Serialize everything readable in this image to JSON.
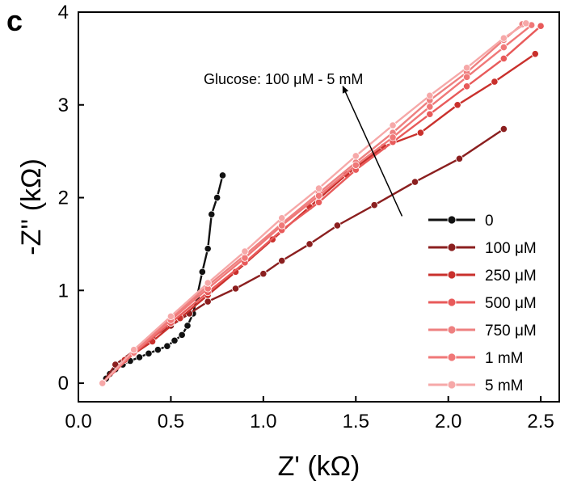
{
  "panel_label": "c",
  "chart_data": {
    "type": "line",
    "title": "",
    "xlabel": "Z' (kΩ)",
    "ylabel": "-Z'' (kΩ)",
    "xlim": [
      0.0,
      2.6
    ],
    "ylim": [
      -0.2,
      4.0
    ],
    "x_ticks": [
      0.0,
      0.5,
      1.0,
      1.5,
      2.0,
      2.5
    ],
    "x_tick_labels": [
      "0.0",
      "0.5",
      "1.0",
      "1.5",
      "2.0",
      "2.5"
    ],
    "y_ticks": [
      0,
      1,
      2,
      3,
      4
    ],
    "y_tick_labels": [
      "0",
      "1",
      "2",
      "3",
      "4"
    ],
    "grid": false,
    "legend_position": "bottom-right",
    "annotation": {
      "text": "Glucose: 100 μM - 5 mM",
      "arrow_from": [
        1.75,
        1.8
      ],
      "arrow_to": [
        1.43,
        3.2
      ]
    },
    "series": [
      {
        "name": "0",
        "color": "#111111",
        "x": [
          0.13,
          0.15,
          0.17,
          0.2,
          0.24,
          0.28,
          0.33,
          0.38,
          0.43,
          0.48,
          0.52,
          0.56,
          0.59,
          0.62,
          0.64,
          0.67,
          0.7,
          0.72,
          0.75,
          0.78
        ],
        "y": [
          0.0,
          0.05,
          0.1,
          0.15,
          0.2,
          0.24,
          0.28,
          0.32,
          0.36,
          0.4,
          0.46,
          0.52,
          0.62,
          0.75,
          0.92,
          1.2,
          1.45,
          1.82,
          2.0,
          2.24
        ]
      },
      {
        "name": "100 μM",
        "color": "#8b1f1f",
        "x": [
          0.13,
          0.2,
          0.3,
          0.4,
          0.5,
          0.6,
          0.7,
          0.85,
          1.0,
          1.1,
          1.25,
          1.4,
          1.6,
          1.82,
          2.06,
          2.3
        ],
        "y": [
          0.0,
          0.2,
          0.35,
          0.5,
          0.62,
          0.75,
          0.88,
          1.02,
          1.18,
          1.32,
          1.5,
          1.7,
          1.92,
          2.17,
          2.42,
          2.74
        ]
      },
      {
        "name": "250 μM",
        "color": "#c9302c",
        "x": [
          0.13,
          0.25,
          0.4,
          0.55,
          0.7,
          0.85,
          1.05,
          1.25,
          1.45,
          1.65,
          1.85,
          2.05,
          2.25,
          2.47
        ],
        "y": [
          0.0,
          0.25,
          0.45,
          0.7,
          0.95,
          1.2,
          1.55,
          1.9,
          2.25,
          2.55,
          2.7,
          3.0,
          3.25,
          3.55
        ]
      },
      {
        "name": "500 μM",
        "color": "#e85a5a",
        "x": [
          0.13,
          0.3,
          0.5,
          0.7,
          0.9,
          1.1,
          1.3,
          1.5,
          1.7,
          1.9,
          2.1,
          2.3,
          2.5
        ],
        "y": [
          0.0,
          0.32,
          0.65,
          0.98,
          1.3,
          1.65,
          1.95,
          2.3,
          2.6,
          2.9,
          3.2,
          3.5,
          3.85
        ]
      },
      {
        "name": "750 μM",
        "color": "#ee8080",
        "x": [
          0.13,
          0.3,
          0.5,
          0.7,
          0.9,
          1.1,
          1.3,
          1.5,
          1.7,
          1.9,
          2.1,
          2.3,
          2.4
        ],
        "y": [
          0.0,
          0.35,
          0.7,
          1.05,
          1.38,
          1.72,
          2.05,
          2.38,
          2.7,
          3.05,
          3.35,
          3.7,
          3.87
        ]
      },
      {
        "name": "1 mM",
        "color": "#f07878",
        "x": [
          0.13,
          0.3,
          0.5,
          0.7,
          0.9,
          1.1,
          1.3,
          1.5,
          1.7,
          1.9,
          2.1,
          2.3,
          2.45
        ],
        "y": [
          0.0,
          0.33,
          0.68,
          1.02,
          1.35,
          1.7,
          2.02,
          2.35,
          2.65,
          2.98,
          3.3,
          3.62,
          3.86
        ]
      },
      {
        "name": "5 mM",
        "color": "#f6a8a8",
        "x": [
          0.13,
          0.3,
          0.5,
          0.7,
          0.9,
          1.1,
          1.3,
          1.5,
          1.7,
          1.9,
          2.1,
          2.3,
          2.42
        ],
        "y": [
          0.0,
          0.36,
          0.72,
          1.08,
          1.42,
          1.78,
          2.1,
          2.45,
          2.78,
          3.1,
          3.4,
          3.72,
          3.88
        ]
      }
    ]
  }
}
